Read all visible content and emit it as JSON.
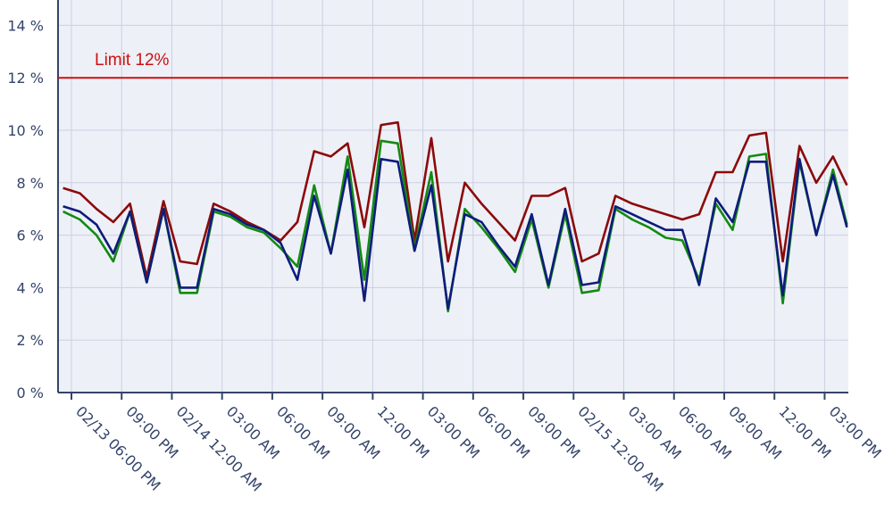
{
  "chart_data": {
    "type": "line",
    "annotation": {
      "value": 12,
      "label": "Limit 12%",
      "color": "#cc1111"
    },
    "x": [
      "02/13 05:30 PM",
      "02/13 06:30 PM",
      "02/13 07:30 PM",
      "02/13 08:30 PM",
      "02/13 09:30 PM",
      "02/13 10:30 PM",
      "02/13 11:30 PM",
      "02/14 12:30 AM",
      "02/14 01:30 AM",
      "02/14 02:30 AM",
      "02/14 03:30 AM",
      "02/14 04:30 AM",
      "02/14 05:30 AM",
      "02/14 06:30 AM",
      "02/14 07:30 AM",
      "02/14 08:30 AM",
      "02/14 09:30 AM",
      "02/14 10:30 AM",
      "02/14 11:30 AM",
      "02/14 12:30 PM",
      "02/14 01:30 PM",
      "02/14 02:30 PM",
      "02/14 03:30 PM",
      "02/14 04:30 PM",
      "02/14 05:30 PM",
      "02/14 06:30 PM",
      "02/14 07:30 PM",
      "02/14 08:30 PM",
      "02/14 09:30 PM",
      "02/14 10:30 PM",
      "02/14 11:30 PM",
      "02/15 12:30 AM",
      "02/15 01:30 AM",
      "02/15 02:30 AM",
      "02/15 03:30 AM",
      "02/15 04:30 AM",
      "02/15 05:30 AM",
      "02/15 06:30 AM",
      "02/15 07:30 AM",
      "02/15 08:30 AM",
      "02/15 09:30 AM",
      "02/15 10:30 AM",
      "02/15 11:30 AM",
      "02/15 12:30 PM",
      "02/15 01:30 PM",
      "02/15 02:30 PM",
      "02/15 03:30 PM",
      "02/15 04:20 PM"
    ],
    "series": [
      {
        "color": "#8b0a0a",
        "values": [
          7.8,
          7.6,
          7.0,
          6.5,
          7.2,
          4.4,
          7.3,
          5.0,
          4.9,
          7.2,
          6.9,
          6.5,
          6.2,
          5.8,
          6.5,
          9.2,
          9.0,
          9.5,
          6.3,
          10.2,
          10.3,
          5.8,
          9.7,
          5.0,
          8.0,
          7.2,
          6.5,
          5.8,
          7.5,
          7.5,
          7.8,
          5.0,
          5.3,
          7.5,
          7.2,
          7.0,
          6.8,
          6.6,
          6.8,
          8.4,
          8.4,
          9.8,
          9.9,
          5.0,
          9.4,
          8.0,
          9.0,
          7.9
        ]
      },
      {
        "color": "#138a13",
        "values": [
          6.9,
          6.6,
          6.0,
          5.0,
          6.9,
          4.2,
          7.0,
          3.8,
          3.8,
          6.9,
          6.7,
          6.3,
          6.1,
          5.5,
          4.8,
          7.9,
          5.3,
          9.0,
          4.3,
          9.6,
          9.5,
          5.5,
          8.4,
          3.1,
          7.0,
          6.3,
          5.5,
          4.6,
          6.6,
          4.0,
          6.8,
          3.8,
          3.9,
          7.0,
          6.6,
          6.3,
          5.9,
          5.8,
          4.3,
          7.2,
          6.2,
          9.0,
          9.1,
          3.4,
          8.8,
          6.0,
          8.5,
          6.4
        ]
      },
      {
        "color": "#0d1c7c",
        "values": [
          7.1,
          6.9,
          6.4,
          5.3,
          6.9,
          4.2,
          7.0,
          4.0,
          4.0,
          7.0,
          6.8,
          6.4,
          6.2,
          5.7,
          4.3,
          7.5,
          5.3,
          8.5,
          3.5,
          8.9,
          8.8,
          5.4,
          7.9,
          3.2,
          6.8,
          6.5,
          5.6,
          4.8,
          6.8,
          4.1,
          7.0,
          4.1,
          4.2,
          7.1,
          6.8,
          6.5,
          6.2,
          6.2,
          4.1,
          7.4,
          6.5,
          8.8,
          8.8,
          3.7,
          8.9,
          6.0,
          8.3,
          6.3
        ]
      }
    ],
    "xlim": [
      "02/13 05:12 PM",
      "02/15 04:25 PM"
    ],
    "xticks": [
      "02/13 06:00 PM",
      {
        "value": "02/13 09:00 PM",
        "label": "09:00 PM"
      },
      "02/14 12:00 AM",
      {
        "value": "02/14 03:00 AM",
        "label": "03:00 AM"
      },
      {
        "value": "02/14 06:00 AM",
        "label": "06:00 AM"
      },
      {
        "value": "02/14 09:00 AM",
        "label": "09:00 AM"
      },
      {
        "value": "02/14 12:00 PM",
        "label": "12:00 PM"
      },
      {
        "value": "02/14 03:00 PM",
        "label": "03:00 PM"
      },
      {
        "value": "02/14 06:00 PM",
        "label": "06:00 PM"
      },
      {
        "value": "02/14 09:00 PM",
        "label": "09:00 PM"
      },
      "02/15 12:00 AM",
      {
        "value": "02/15 03:00 AM",
        "label": "03:00 AM"
      },
      {
        "value": "02/15 06:00 AM",
        "label": "06:00 AM"
      },
      {
        "value": "02/15 09:00 AM",
        "label": "09:00 AM"
      },
      {
        "value": "02/15 12:00 PM",
        "label": "12:00 PM"
      },
      {
        "value": "02/15 03:00 PM",
        "label": "03:00 PM"
      }
    ],
    "ylim": [
      0,
      15
    ],
    "yticks": [
      {
        "value": 0,
        "label": "0 %"
      },
      {
        "value": 2,
        "label": "2 %"
      },
      {
        "value": 4,
        "label": "4 %"
      },
      {
        "value": 6,
        "label": "6 %"
      },
      {
        "value": 8,
        "label": "8 %"
      },
      {
        "value": 10,
        "label": "10 %"
      },
      {
        "value": 12,
        "label": "12 %"
      },
      {
        "value": 14,
        "label": "14 %"
      }
    ],
    "grid": true
  }
}
